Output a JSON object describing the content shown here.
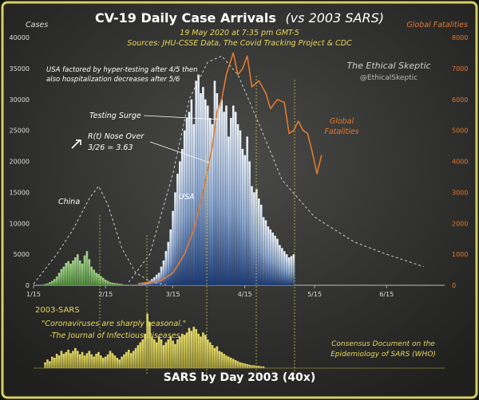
{
  "colors": {
    "border": "#d8cf62",
    "panel_bg": "#2c2c2c",
    "covid_bars_top": "#e6eef8",
    "covid_bars_bottom": "#1e3f7a",
    "china_bars": "#7fb86a",
    "fatalities_line": "#e07a32",
    "sars_bars": "#c8c050",
    "sars_text": "#e8d85a",
    "white_text": "#ffffff",
    "gray_text": "#cccccc"
  },
  "header": {
    "title": "CV-19 Daily Case Arrivals",
    "title_suffix": "(vs 2003 SARS)",
    "date_line": "19 May 2020 at 7:35 pm GMT-5",
    "sources": "Sources: JHU-CSSE Data, The Covid Tracking Project & CDC",
    "left_axis_label": "Cases",
    "right_axis_label": "Global Fatalities"
  },
  "annotations": {
    "usa_note_line1": "USA factored by hyper-testing after 4/5 then",
    "usa_note_line2": "also hospitalization decreases after 5/6",
    "watermark_line1": "The Ethical Skeptic",
    "watermark_line2": "@EthicalSkeptic",
    "testing_surge": "Testing Surge",
    "rt_line1": "R(t) Nose Over",
    "rt_line2": "3/26 = 3.63",
    "china": "China",
    "usa": "USA",
    "global_fatalities_line1": "Global",
    "global_fatalities_line2": "Fatalities"
  },
  "sars_panel": {
    "label": "2003-SARS",
    "quote": "\"Coronaviruses are sharply seasonal.\"",
    "quote_source": "-The Journal of Infectious Diseases",
    "consensus_line1": "Consensus Document on the",
    "consensus_line2": "Epidemiology of SARS (WHO)",
    "footer": "SARS by Day 2003 (40x)"
  },
  "chart_data": {
    "type": "bar",
    "title": "CV-19 Daily Case Arrivals",
    "x_ticks": [
      "1/15",
      "2/15",
      "3/15",
      "4/15",
      "5/15",
      "6/15"
    ],
    "y_left": {
      "label": "Cases",
      "range": [
        0,
        40000
      ],
      "ticks": [
        0,
        5000,
        10000,
        15000,
        20000,
        25000,
        30000,
        35000,
        40000
      ]
    },
    "y_right": {
      "label": "Global Fatalities",
      "range": [
        0,
        8000
      ],
      "ticks": [
        0,
        1000,
        2000,
        3000,
        4000,
        5000,
        6000,
        7000,
        8000
      ]
    },
    "legend": "none",
    "series": [
      {
        "name": "China",
        "type": "bar",
        "x_start": "1/20",
        "values": [
          200,
          300,
          500,
          700,
          1000,
          1400,
          2000,
          2600,
          3000,
          3600,
          3900,
          3500,
          4000,
          4500,
          5000,
          4000,
          3500,
          4800,
          5500,
          4200,
          3000,
          2500,
          2000,
          1800,
          1500,
          1200,
          900,
          700,
          500,
          400,
          350,
          300,
          250,
          200
        ]
      },
      {
        "name": "USA",
        "type": "bar",
        "x_start": "2/28",
        "values": [
          50,
          80,
          120,
          200,
          300,
          500,
          700,
          1000,
          1300,
          1700,
          2000,
          3000,
          4000,
          5500,
          7000,
          9000,
          12000,
          15000,
          18000,
          20000,
          22000,
          25000,
          27000,
          28000,
          30000,
          26000,
          33000,
          34000,
          31000,
          32000,
          30000,
          29000,
          27000,
          26000,
          33000,
          31000,
          29000,
          30000,
          28000,
          29000,
          24000,
          27000,
          29000,
          28000,
          26000,
          25000,
          22000,
          21000,
          24000,
          20000,
          16000,
          15000,
          15500,
          14000,
          13000,
          11000,
          10500,
          9500,
          9000,
          8500,
          8000,
          7500,
          6500,
          6000,
          5500,
          5000,
          4500,
          4700,
          5000
        ]
      },
      {
        "name": "Global Fatalities",
        "type": "line",
        "axis": "right",
        "points": [
          [
            "2/29",
            50
          ],
          [
            "3/10",
            150
          ],
          [
            "3/15",
            400
          ],
          [
            "3/20",
            1000
          ],
          [
            "3/24",
            1800
          ],
          [
            "3/28",
            3000
          ],
          [
            "4/1",
            4500
          ],
          [
            "4/3",
            5600
          ],
          [
            "4/5",
            6000
          ],
          [
            "4/7",
            6800
          ],
          [
            "4/10",
            7500
          ],
          [
            "4/12",
            6800
          ],
          [
            "4/14",
            7000
          ],
          [
            "4/16",
            7400
          ],
          [
            "4/18",
            6400
          ],
          [
            "4/21",
            6600
          ],
          [
            "4/24",
            6200
          ],
          [
            "4/26",
            5700
          ],
          [
            "4/29",
            6000
          ],
          [
            "5/2",
            5900
          ],
          [
            "5/4",
            4900
          ],
          [
            "5/6",
            5000
          ],
          [
            "5/8",
            5300
          ],
          [
            "5/10",
            5000
          ],
          [
            "5/12",
            4900
          ],
          [
            "5/14",
            4300
          ],
          [
            "5/16",
            3600
          ],
          [
            "5/18",
            4200
          ]
        ]
      },
      {
        "name": "Seasonal curve (China)",
        "type": "line",
        "style": "dashed",
        "points": [
          [
            "1/15",
            200
          ],
          [
            "1/25",
            5000
          ],
          [
            "2/1",
            9000
          ],
          [
            "2/8",
            14000
          ],
          [
            "2/12",
            16000
          ],
          [
            "2/16",
            13000
          ],
          [
            "2/22",
            6000
          ],
          [
            "2/28",
            2000
          ],
          [
            "3/6",
            500
          ],
          [
            "3/12",
            100
          ]
        ]
      },
      {
        "name": "Seasonal curve (USA)",
        "type": "line",
        "style": "dashed",
        "points": [
          [
            "2/25",
            500
          ],
          [
            "3/5",
            5000
          ],
          [
            "3/15",
            18000
          ],
          [
            "3/22",
            30000
          ],
          [
            "3/30",
            36000
          ],
          [
            "4/5",
            37000
          ],
          [
            "4/12",
            34000
          ],
          [
            "4/20",
            27000
          ],
          [
            "5/1",
            17000
          ],
          [
            "5/15",
            11000
          ],
          [
            "6/1",
            7000
          ],
          [
            "6/15",
            5000
          ],
          [
            "7/1",
            3000
          ]
        ]
      },
      {
        "name": "SARS by Day 2003 (40x)",
        "type": "bar",
        "panel": "bottom",
        "x_start": "1/20",
        "relative_values": [
          0.1,
          0.15,
          0.12,
          0.2,
          0.18,
          0.25,
          0.22,
          0.3,
          0.25,
          0.28,
          0.32,
          0.26,
          0.3,
          0.35,
          0.3,
          0.24,
          0.28,
          0.22,
          0.26,
          0.3,
          0.24,
          0.2,
          0.25,
          0.28,
          0.22,
          0.18,
          0.2,
          0.24,
          0.3,
          0.26,
          0.22,
          0.18,
          0.15,
          0.2,
          0.24,
          0.28,
          0.32,
          0.26,
          0.3,
          0.35,
          0.4,
          0.45,
          0.5,
          0.6,
          0.95,
          0.8,
          0.55,
          0.5,
          0.45,
          0.55,
          0.5,
          0.4,
          0.45,
          0.5,
          0.55,
          0.48,
          0.42,
          0.5,
          0.55,
          0.6,
          0.58,
          0.62,
          0.7,
          0.65,
          0.72,
          0.68,
          0.6,
          0.55,
          0.62,
          0.58,
          0.5,
          0.45,
          0.4,
          0.35,
          0.38,
          0.3,
          0.28,
          0.25,
          0.22,
          0.2,
          0.18,
          0.16,
          0.14,
          0.12,
          0.1,
          0.09,
          0.08,
          0.07,
          0.06,
          0.05,
          0.05,
          0.04,
          0.04,
          0.03,
          0.03
        ]
      }
    ]
  }
}
